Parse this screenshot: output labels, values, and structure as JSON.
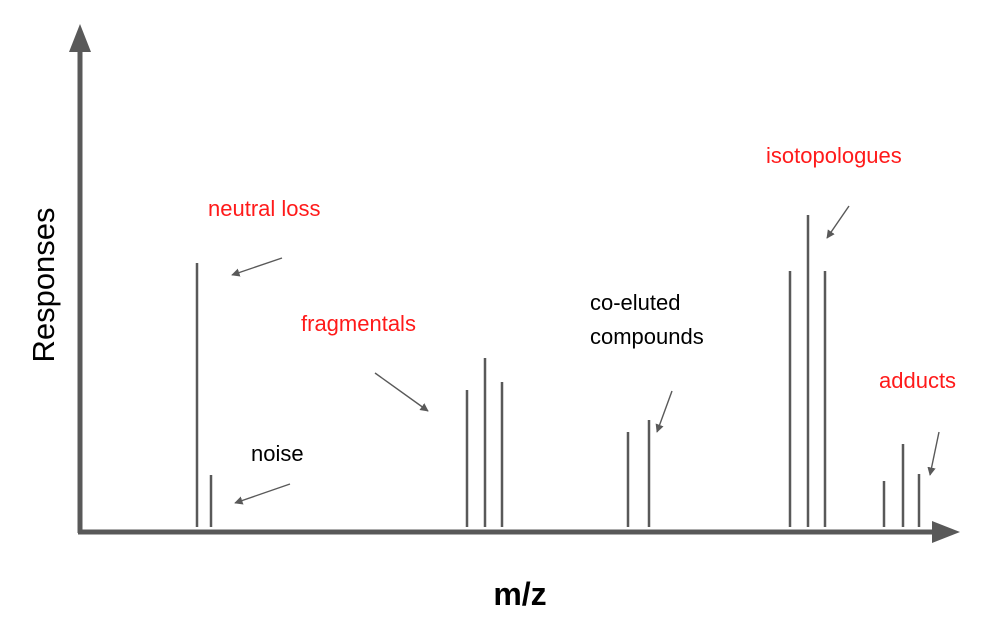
{
  "chart_data": {
    "type": "bar",
    "xlabel": "m/z",
    "ylabel": "Responses",
    "colors": {
      "axis": "#595959",
      "peak": "#595959",
      "arrow": "#595959",
      "highlight_label": "#ff1a1a",
      "plain_label": "#000000"
    },
    "annotations": [
      {
        "key": "neutral_loss",
        "text": "neutral loss",
        "highlight": true
      },
      {
        "key": "noise",
        "text": "noise",
        "highlight": false
      },
      {
        "key": "fragmentals",
        "text": "fragmentals",
        "highlight": true
      },
      {
        "key": "co_eluted",
        "lines": [
          "co-eluted",
          "compounds"
        ],
        "highlight": false
      },
      {
        "key": "isotopologues",
        "text": "isotopologues",
        "highlight": true
      },
      {
        "key": "adducts",
        "text": "adducts",
        "highlight": true
      }
    ]
  }
}
